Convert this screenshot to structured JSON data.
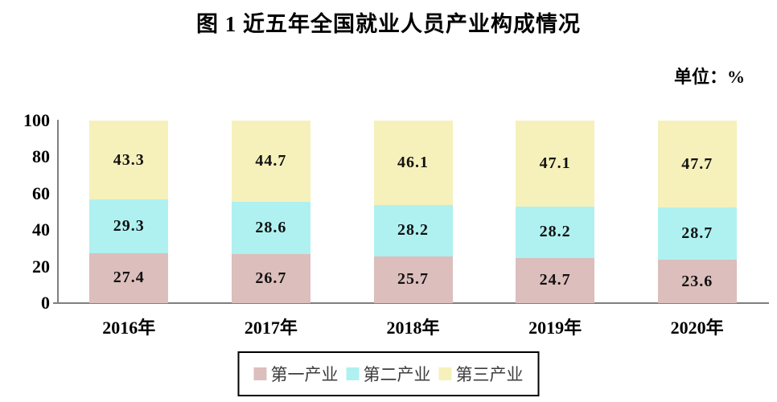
{
  "title": "图 1  近五年全国就业人员产业构成情况",
  "unit_label": "单位：%",
  "chart_data": {
    "type": "bar",
    "stacked": true,
    "title": "图 1  近五年全国就业人员产业构成情况",
    "unit": "%",
    "categories": [
      "2016年",
      "2017年",
      "2018年",
      "2019年",
      "2020年"
    ],
    "series": [
      {
        "name": "第一产业",
        "color": "#dcbebc",
        "values": [
          27.4,
          26.7,
          25.7,
          24.7,
          23.6
        ]
      },
      {
        "name": "第二产业",
        "color": "#aff1f1",
        "values": [
          29.3,
          28.6,
          28.2,
          28.2,
          28.7
        ]
      },
      {
        "name": "第三产业",
        "color": "#f6f1bb",
        "values": [
          43.3,
          44.7,
          46.1,
          47.1,
          47.7
        ]
      }
    ],
    "y_ticks": [
      0,
      20,
      40,
      60,
      80,
      100
    ],
    "ylim": [
      0,
      100
    ],
    "grid": false,
    "legend_position": "bottom",
    "axis_color": "#7f7f7f"
  }
}
